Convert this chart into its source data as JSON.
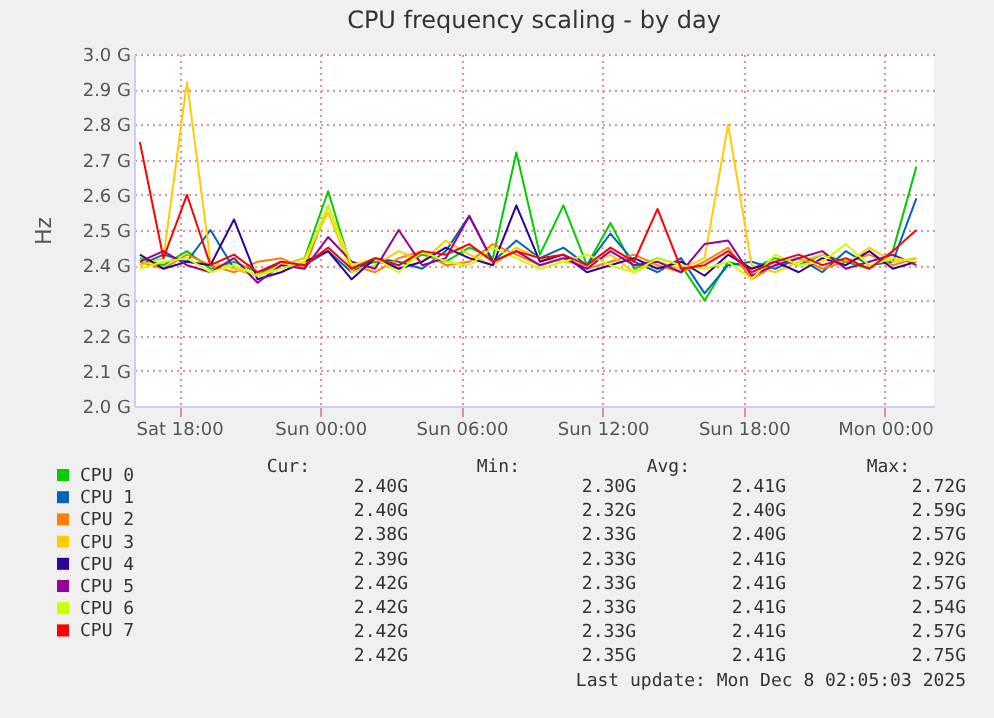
{
  "chart_data": {
    "type": "line",
    "title": "CPU frequency scaling - by day",
    "ylabel": "Hz",
    "x": [
      "2025-12-06T16:20",
      "2025-12-06T17:20",
      "2025-12-06T18:20",
      "2025-12-06T19:20",
      "2025-12-06T20:20",
      "2025-12-06T21:20",
      "2025-12-06T22:20",
      "2025-12-06T23:20",
      "2025-12-07T00:20",
      "2025-12-07T01:20",
      "2025-12-07T02:20",
      "2025-12-07T03:20",
      "2025-12-07T04:20",
      "2025-12-07T05:20",
      "2025-12-07T06:20",
      "2025-12-07T07:20",
      "2025-12-07T08:20",
      "2025-12-07T09:20",
      "2025-12-07T10:20",
      "2025-12-07T11:20",
      "2025-12-07T12:20",
      "2025-12-07T13:20",
      "2025-12-07T14:20",
      "2025-12-07T15:20",
      "2025-12-07T16:20",
      "2025-12-07T17:20",
      "2025-12-07T18:20",
      "2025-12-07T19:20",
      "2025-12-07T20:20",
      "2025-12-07T21:20",
      "2025-12-07T22:20",
      "2025-12-07T23:20",
      "2025-12-08T00:20",
      "2025-12-08T01:20"
    ],
    "xlim": [
      "2025-12-06T16:05",
      "2025-12-08T02:05"
    ],
    "xticks": [
      {
        "value": "2025-12-06T18:00",
        "label": "Sat 18:00"
      },
      {
        "value": "2025-12-07T00:00",
        "label": "Sun 00:00"
      },
      {
        "value": "2025-12-07T06:00",
        "label": "Sun 06:00"
      },
      {
        "value": "2025-12-07T12:00",
        "label": "Sun 12:00"
      },
      {
        "value": "2025-12-07T18:00",
        "label": "Sun 18:00"
      },
      {
        "value": "2025-12-08T00:00",
        "label": "Mon 00:00"
      }
    ],
    "ylim": [
      2.0,
      3.0
    ],
    "yticks": [
      {
        "value": 2.0,
        "label": "2.0 G"
      },
      {
        "value": 2.1,
        "label": "2.1 G"
      },
      {
        "value": 2.2,
        "label": "2.2 G"
      },
      {
        "value": 2.3,
        "label": "2.3 G"
      },
      {
        "value": 2.4,
        "label": "2.4 G"
      },
      {
        "value": 2.5,
        "label": "2.5 G"
      },
      {
        "value": 2.6,
        "label": "2.6 G"
      },
      {
        "value": 2.7,
        "label": "2.7 G"
      },
      {
        "value": 2.8,
        "label": "2.8 G"
      },
      {
        "value": 2.9,
        "label": "2.9 G"
      },
      {
        "value": 3.0,
        "label": "3.0 G"
      }
    ],
    "grid": true,
    "legend": "bottom",
    "marker": "none",
    "series": [
      {
        "name": "CPU 0",
        "color": "#00cc00",
        "values": [
          2.42,
          2.4,
          2.44,
          2.39,
          2.41,
          2.38,
          2.4,
          2.42,
          2.61,
          2.39,
          2.41,
          2.4,
          2.43,
          2.41,
          2.45,
          2.42,
          2.72,
          2.43,
          2.57,
          2.4,
          2.52,
          2.39,
          2.42,
          2.4,
          2.3,
          2.41,
          2.39,
          2.42,
          2.4,
          2.43,
          2.41,
          2.39,
          2.44,
          2.68
        ]
      },
      {
        "name": "CPU 1",
        "color": "#0066b3",
        "values": [
          2.4,
          2.43,
          2.41,
          2.5,
          2.39,
          2.37,
          2.41,
          2.4,
          2.44,
          2.38,
          2.42,
          2.41,
          2.39,
          2.44,
          2.54,
          2.41,
          2.47,
          2.42,
          2.45,
          2.4,
          2.49,
          2.41,
          2.38,
          2.42,
          2.32,
          2.4,
          2.41,
          2.39,
          2.42,
          2.38,
          2.44,
          2.4,
          2.41,
          2.59
        ]
      },
      {
        "name": "CPU 2",
        "color": "#ff8000",
        "values": [
          2.41,
          2.39,
          2.43,
          2.4,
          2.38,
          2.41,
          2.42,
          2.39,
          2.57,
          2.4,
          2.38,
          2.42,
          2.44,
          2.4,
          2.41,
          2.46,
          2.43,
          2.4,
          2.42,
          2.39,
          2.41,
          2.43,
          2.4,
          2.38,
          2.41,
          2.45,
          2.36,
          2.4,
          2.42,
          2.39,
          2.41,
          2.43,
          2.4,
          2.42
        ]
      },
      {
        "name": "CPU 3",
        "color": "#ffcc00",
        "values": [
          2.4,
          2.42,
          2.92,
          2.41,
          2.39,
          2.37,
          2.4,
          2.42,
          2.55,
          2.38,
          2.4,
          2.44,
          2.41,
          2.47,
          2.43,
          2.4,
          2.45,
          2.42,
          2.41,
          2.4,
          2.43,
          2.38,
          2.41,
          2.39,
          2.42,
          2.8,
          2.4,
          2.38,
          2.41,
          2.43,
          2.4,
          2.45,
          2.41,
          2.42
        ]
      },
      {
        "name": "CPU 4",
        "color": "#330099",
        "values": [
          2.43,
          2.39,
          2.41,
          2.4,
          2.53,
          2.36,
          2.38,
          2.41,
          2.44,
          2.36,
          2.42,
          2.39,
          2.41,
          2.45,
          2.42,
          2.4,
          2.57,
          2.41,
          2.43,
          2.38,
          2.4,
          2.42,
          2.39,
          2.41,
          2.37,
          2.43,
          2.39,
          2.41,
          2.38,
          2.42,
          2.4,
          2.44,
          2.39,
          2.41
        ]
      },
      {
        "name": "CPU 5",
        "color": "#990099",
        "values": [
          2.41,
          2.44,
          2.4,
          2.38,
          2.42,
          2.35,
          2.4,
          2.39,
          2.48,
          2.41,
          2.39,
          2.5,
          2.4,
          2.42,
          2.54,
          2.41,
          2.44,
          2.4,
          2.42,
          2.39,
          2.44,
          2.4,
          2.41,
          2.38,
          2.46,
          2.47,
          2.37,
          2.4,
          2.42,
          2.44,
          2.39,
          2.41,
          2.43,
          2.4
        ]
      },
      {
        "name": "CPU 6",
        "color": "#ccff00",
        "values": [
          2.39,
          2.41,
          2.42,
          2.38,
          2.4,
          2.37,
          2.39,
          2.41,
          2.57,
          2.4,
          2.42,
          2.38,
          2.44,
          2.41,
          2.4,
          2.45,
          2.42,
          2.39,
          2.41,
          2.43,
          2.4,
          2.38,
          2.42,
          2.4,
          2.39,
          2.41,
          2.36,
          2.43,
          2.4,
          2.41,
          2.46,
          2.4,
          2.42,
          2.41
        ]
      },
      {
        "name": "CPU 7",
        "color": "#ff0000",
        "values": [
          2.75,
          2.42,
          2.6,
          2.4,
          2.43,
          2.38,
          2.41,
          2.4,
          2.45,
          2.39,
          2.42,
          2.4,
          2.44,
          2.43,
          2.46,
          2.41,
          2.44,
          2.42,
          2.43,
          2.4,
          2.45,
          2.41,
          2.56,
          2.39,
          2.4,
          2.44,
          2.38,
          2.41,
          2.43,
          2.4,
          2.42,
          2.39,
          2.44,
          2.5
        ]
      }
    ],
    "annotations": [
      "Cur:",
      "Min:",
      "Avg:",
      "Max:",
      "2.40G",
      "2.30G",
      "2.41G",
      "2.72G",
      "2.40G",
      "2.32G",
      "2.40G",
      "2.59G",
      "2.38G",
      "2.33G",
      "2.40G",
      "2.57G",
      "2.39G",
      "2.33G",
      "2.41G",
      "2.92G",
      "2.42G",
      "2.33G",
      "2.41G",
      "2.57G",
      "2.42G",
      "2.33G",
      "2.41G",
      "2.54G",
      "2.42G",
      "2.33G",
      "2.41G",
      "2.57G",
      "2.42G",
      "2.35G",
      "2.41G",
      "2.75G",
      "Last update: Mon Dec  8 02:05:03 2025"
    ]
  }
}
